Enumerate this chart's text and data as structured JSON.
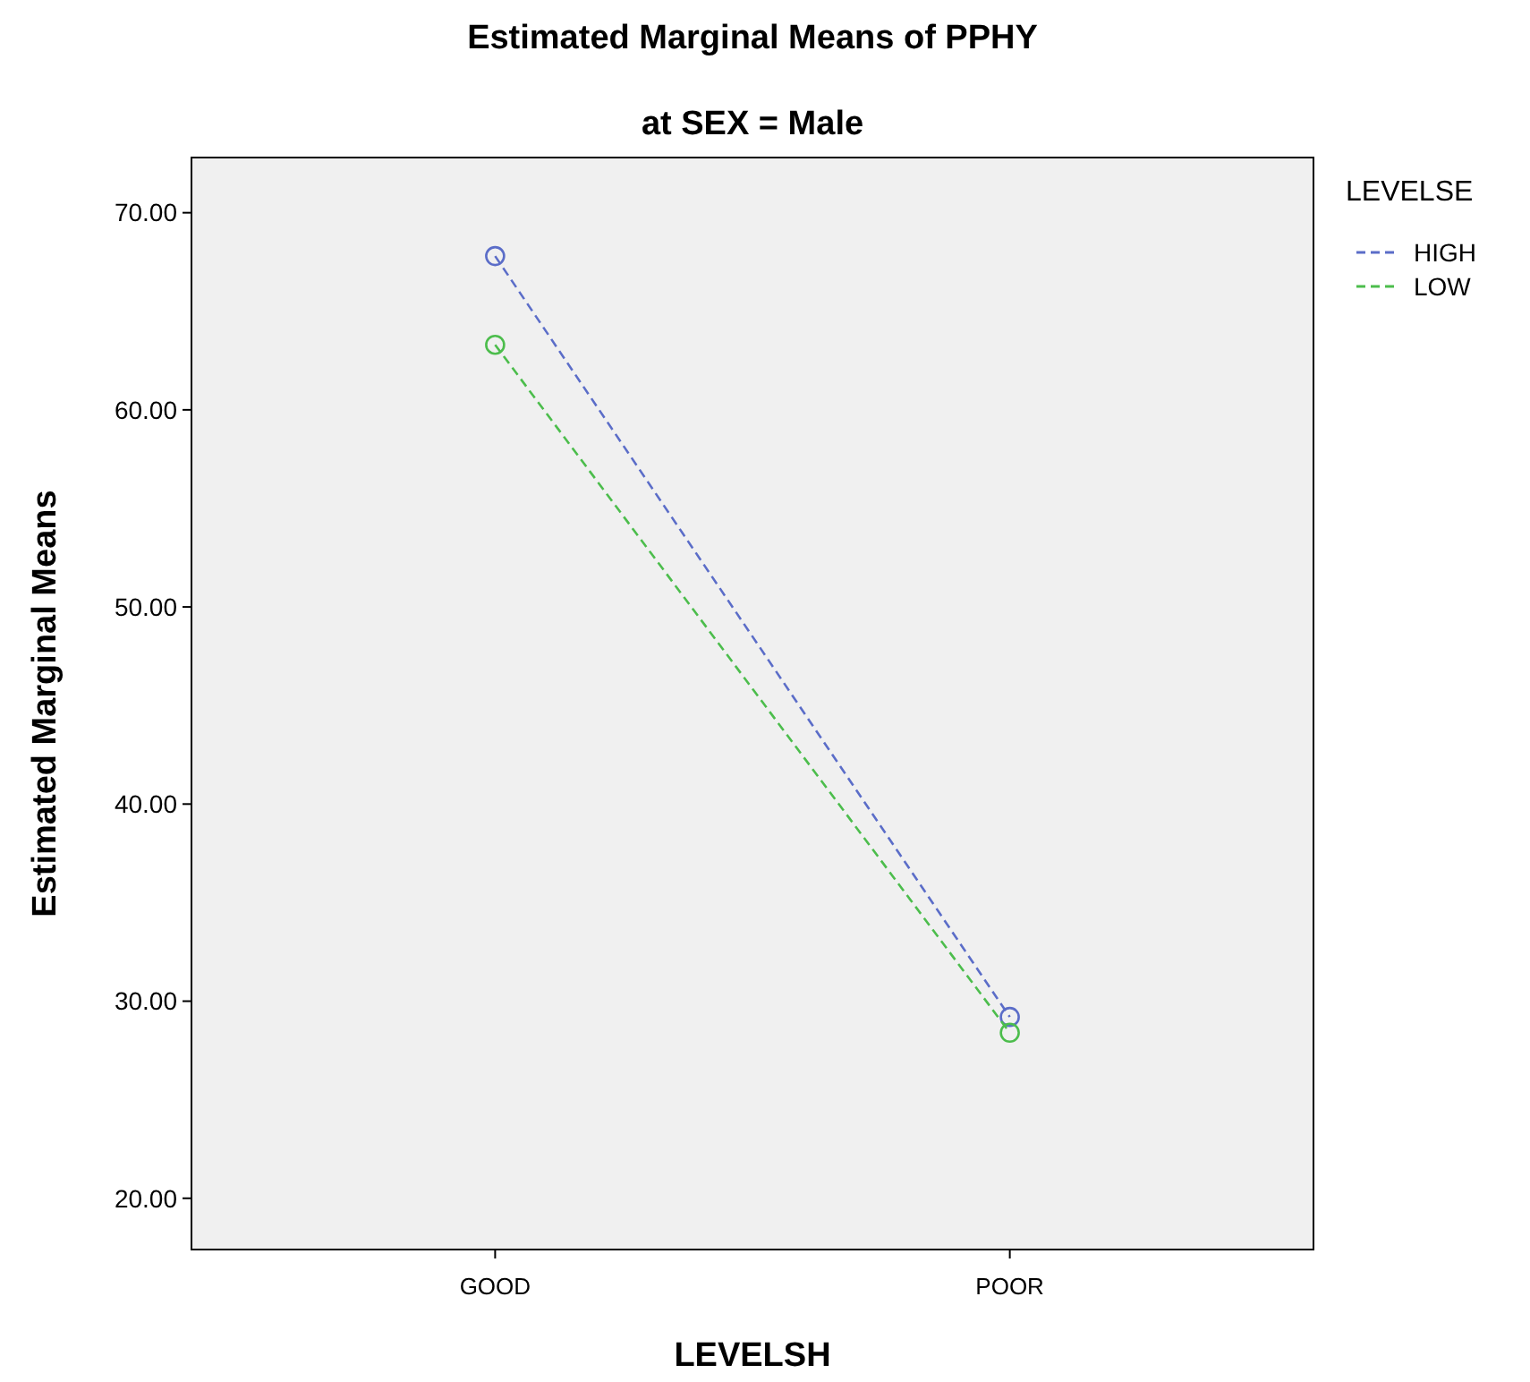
{
  "chart_data": {
    "type": "line",
    "title": "Estimated Marginal Means of PPHY",
    "subtitle": "at SEX = Male",
    "xlabel": "LEVELSH",
    "ylabel": "Estimated Marginal Means",
    "legend_title": "LEVELSE",
    "categories": [
      "GOOD",
      "POOR"
    ],
    "series": [
      {
        "name": "HIGH",
        "color": "#5b6dc8",
        "values": [
          67.8,
          29.2
        ]
      },
      {
        "name": "LOW",
        "color": "#4cbd4c",
        "values": [
          63.3,
          28.4
        ]
      }
    ],
    "ylim": [
      17.4,
      72.8
    ],
    "yticks": [
      {
        "value": 20,
        "label": "20.00"
      },
      {
        "value": 30,
        "label": "30.00"
      },
      {
        "value": 40,
        "label": "40.00"
      },
      {
        "value": 50,
        "label": "50.00"
      },
      {
        "value": 60,
        "label": "60.00"
      },
      {
        "value": 70,
        "label": "70.00"
      }
    ],
    "grid": false,
    "legend": "right",
    "marker": "circle",
    "line_style": "dashed"
  }
}
